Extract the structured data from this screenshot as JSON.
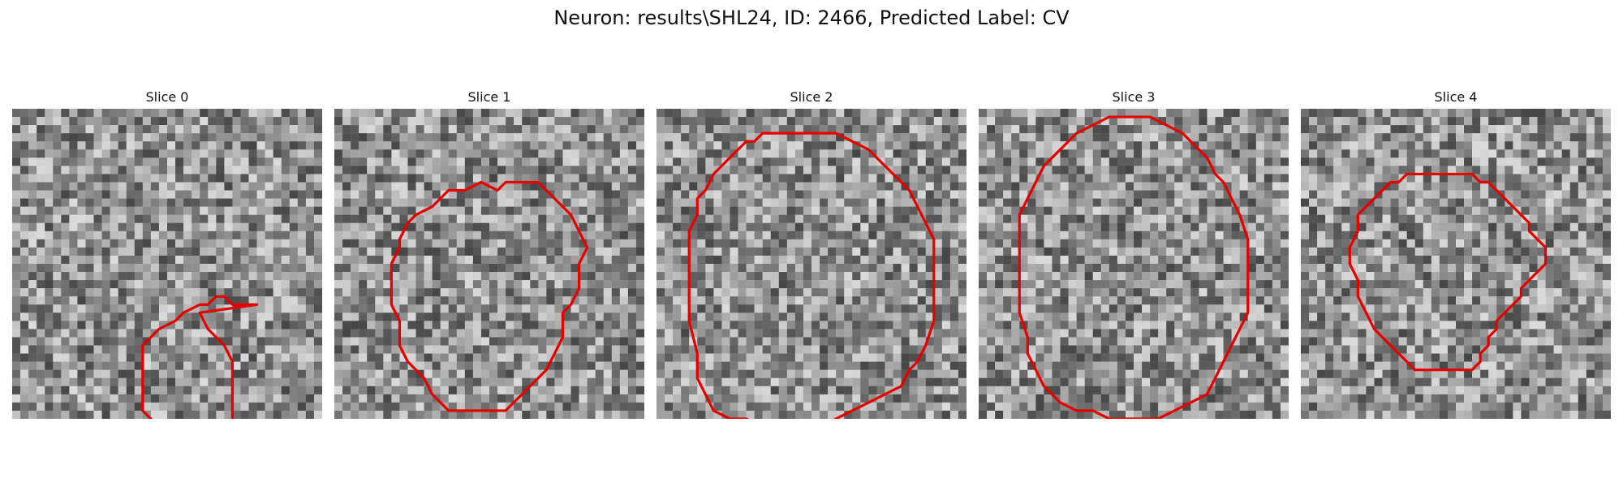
{
  "figure": {
    "title": "Neuron: results\\SHL24, ID: 2466, Predicted Label: CV"
  },
  "panels": [
    {
      "title": "Slice 0",
      "contour": [
        [
          30,
          24
        ],
        [
          27,
          24
        ],
        [
          26,
          23
        ],
        [
          25,
          23
        ],
        [
          24,
          24
        ],
        [
          23,
          24
        ],
        [
          21,
          25
        ],
        [
          20,
          26
        ],
        [
          18,
          27
        ],
        [
          17,
          28
        ],
        [
          16,
          29
        ],
        [
          16,
          31
        ],
        [
          16,
          33
        ],
        [
          16,
          35
        ],
        [
          16,
          37
        ],
        [
          17,
          38
        ],
        [
          18,
          39
        ],
        [
          19,
          40
        ],
        [
          20,
          41
        ],
        [
          21,
          42
        ],
        [
          22,
          42
        ],
        [
          23,
          42
        ],
        [
          24,
          41
        ],
        [
          25,
          40
        ],
        [
          26,
          39
        ],
        [
          27,
          38
        ],
        [
          27,
          35
        ],
        [
          27,
          31
        ],
        [
          26,
          29
        ],
        [
          24,
          27
        ],
        [
          23,
          25
        ]
      ],
      "seed": 11
    },
    {
      "title": "Slice 1",
      "contour": [
        [
          20,
          10
        ],
        [
          18,
          9
        ],
        [
          16,
          10
        ],
        [
          14,
          10
        ],
        [
          13,
          11
        ],
        [
          12,
          12
        ],
        [
          10,
          13
        ],
        [
          9,
          14
        ],
        [
          8,
          16
        ],
        [
          8,
          17
        ],
        [
          7,
          19
        ],
        [
          7,
          21
        ],
        [
          7,
          24
        ],
        [
          8,
          26
        ],
        [
          8,
          29
        ],
        [
          9,
          31
        ],
        [
          10,
          32
        ],
        [
          11,
          33
        ],
        [
          12,
          35
        ],
        [
          13,
          36
        ],
        [
          14,
          37
        ],
        [
          16,
          37
        ],
        [
          18,
          37
        ],
        [
          21,
          37
        ],
        [
          22,
          36
        ],
        [
          23,
          35
        ],
        [
          25,
          33
        ],
        [
          26,
          32
        ],
        [
          27,
          30
        ],
        [
          28,
          28
        ],
        [
          28,
          25
        ],
        [
          29,
          24
        ],
        [
          30,
          22
        ],
        [
          30,
          19
        ],
        [
          31,
          17
        ],
        [
          30,
          15
        ],
        [
          29,
          13
        ],
        [
          28,
          12
        ],
        [
          27,
          11
        ],
        [
          26,
          10
        ],
        [
          25,
          9
        ],
        [
          23,
          9
        ],
        [
          21,
          9
        ]
      ],
      "seed": 29
    },
    {
      "title": "Slice 2",
      "contour": [
        [
          18,
          3
        ],
        [
          17,
          3
        ],
        [
          15,
          3
        ],
        [
          13,
          3
        ],
        [
          12,
          4
        ],
        [
          11,
          4
        ],
        [
          10,
          5
        ],
        [
          9,
          6
        ],
        [
          8,
          7
        ],
        [
          7,
          8
        ],
        [
          6,
          10
        ],
        [
          5,
          11
        ],
        [
          5,
          13
        ],
        [
          4,
          15
        ],
        [
          4,
          18
        ],
        [
          4,
          22
        ],
        [
          4,
          26
        ],
        [
          5,
          30
        ],
        [
          5,
          33
        ],
        [
          6,
          35
        ],
        [
          7,
          37
        ],
        [
          9,
          38
        ],
        [
          11,
          38
        ],
        [
          13,
          39
        ],
        [
          15,
          39
        ],
        [
          18,
          39
        ],
        [
          20,
          39
        ],
        [
          22,
          38
        ],
        [
          24,
          37
        ],
        [
          26,
          36
        ],
        [
          28,
          35
        ],
        [
          30,
          34
        ],
        [
          31,
          32
        ],
        [
          32,
          31
        ],
        [
          33,
          29
        ],
        [
          34,
          26
        ],
        [
          34,
          22
        ],
        [
          34,
          19
        ],
        [
          34,
          16
        ],
        [
          33,
          14
        ],
        [
          32,
          12
        ],
        [
          31,
          10
        ],
        [
          30,
          9
        ],
        [
          28,
          7
        ],
        [
          26,
          5
        ],
        [
          24,
          4
        ],
        [
          22,
          3
        ],
        [
          20,
          3
        ]
      ],
      "seed": 53
    },
    {
      "title": "Slice 3",
      "contour": [
        [
          16,
          1
        ],
        [
          14,
          2
        ],
        [
          12,
          3
        ],
        [
          11,
          4
        ],
        [
          10,
          5
        ],
        [
          9,
          6
        ],
        [
          8,
          7
        ],
        [
          7,
          9
        ],
        [
          6,
          11
        ],
        [
          5,
          13
        ],
        [
          5,
          16
        ],
        [
          5,
          19
        ],
        [
          5,
          22
        ],
        [
          5,
          25
        ],
        [
          6,
          28
        ],
        [
          6,
          30
        ],
        [
          7,
          32
        ],
        [
          8,
          34
        ],
        [
          9,
          35
        ],
        [
          10,
          36
        ],
        [
          12,
          37
        ],
        [
          14,
          37
        ],
        [
          16,
          38
        ],
        [
          18,
          38
        ],
        [
          20,
          38
        ],
        [
          22,
          38
        ],
        [
          24,
          37
        ],
        [
          26,
          36
        ],
        [
          28,
          35
        ],
        [
          29,
          33
        ],
        [
          30,
          31
        ],
        [
          31,
          29
        ],
        [
          32,
          27
        ],
        [
          33,
          25
        ],
        [
          33,
          22
        ],
        [
          33,
          19
        ],
        [
          33,
          16
        ],
        [
          32,
          13
        ],
        [
          31,
          11
        ],
        [
          30,
          9
        ],
        [
          29,
          8
        ],
        [
          28,
          6
        ],
        [
          27,
          5
        ],
        [
          26,
          4
        ],
        [
          25,
          3
        ],
        [
          23,
          2
        ],
        [
          21,
          1
        ],
        [
          19,
          1
        ]
      ],
      "seed": 71
    },
    {
      "title": "Slice 4",
      "contour": [
        [
          16,
          8
        ],
        [
          15,
          8
        ],
        [
          13,
          8
        ],
        [
          12,
          9
        ],
        [
          11,
          9
        ],
        [
          10,
          10
        ],
        [
          9,
          11
        ],
        [
          8,
          12
        ],
        [
          7,
          13
        ],
        [
          7,
          15
        ],
        [
          6,
          17
        ],
        [
          6,
          19
        ],
        [
          7,
          21
        ],
        [
          7,
          23
        ],
        [
          8,
          25
        ],
        [
          9,
          27
        ],
        [
          10,
          28
        ],
        [
          11,
          29
        ],
        [
          12,
          30
        ],
        [
          13,
          31
        ],
        [
          14,
          32
        ],
        [
          15,
          32
        ],
        [
          17,
          32
        ],
        [
          19,
          32
        ],
        [
          21,
          32
        ],
        [
          22,
          31
        ],
        [
          22,
          30
        ],
        [
          23,
          29
        ],
        [
          23,
          28
        ],
        [
          24,
          27
        ],
        [
          24,
          26
        ],
        [
          25,
          25
        ],
        [
          26,
          24
        ],
        [
          27,
          23
        ],
        [
          27,
          22
        ],
        [
          28,
          21
        ],
        [
          29,
          20
        ],
        [
          30,
          19
        ],
        [
          30,
          18
        ],
        [
          30,
          17
        ],
        [
          29,
          16
        ],
        [
          28,
          15
        ],
        [
          28,
          14
        ],
        [
          27,
          13
        ],
        [
          26,
          12
        ],
        [
          25,
          11
        ],
        [
          24,
          10
        ],
        [
          23,
          9
        ],
        [
          22,
          9
        ],
        [
          21,
          8
        ],
        [
          20,
          8
        ],
        [
          18,
          8
        ]
      ],
      "seed": 97
    }
  ],
  "style": {
    "contour_color": "#e60000"
  }
}
